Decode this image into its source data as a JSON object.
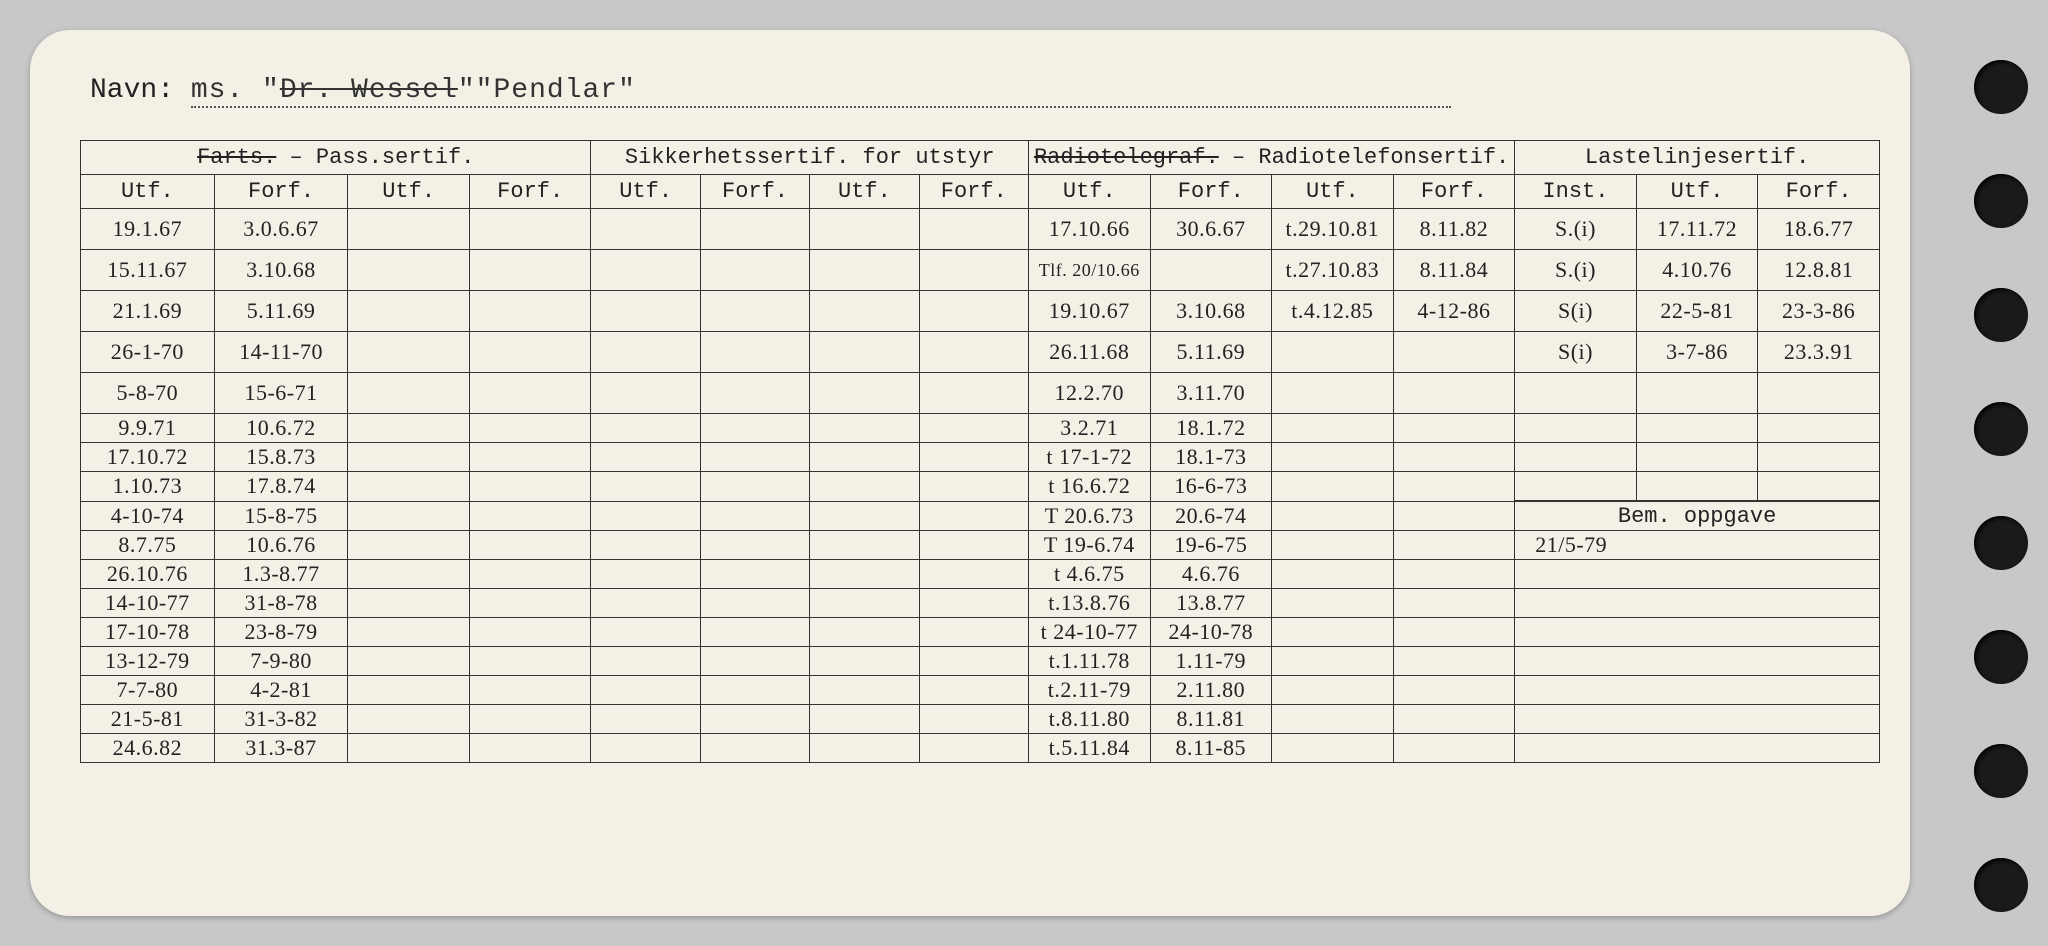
{
  "navn_label": "Navn:",
  "navn_typed_prefix": "ms.  \"",
  "navn_struck": "Dr. Wessel",
  "navn_typed_rest": "\"\"Pendlar\"",
  "headers": {
    "pass_group": "Farts. – Pass.sertif.",
    "pass_struck": "Farts.",
    "pass_rest": " – Pass.sertif.",
    "sik_group": "Sikkerhetssertif. for utstyr",
    "rad_group_struck": "Radiotelegraf.",
    "rad_group_rest": " – Radiotelefonsertif.",
    "last_group": "Lastelinjesertif.",
    "utf": "Utf.",
    "forf": "Forf.",
    "inst": "Inst.",
    "bem": "Bem. oppgave"
  },
  "pass": [
    [
      "19.1.67",
      "3.0.6.67"
    ],
    [
      "15.11.67",
      "3.10.68"
    ],
    [
      "21.1.69",
      "5.11.69"
    ],
    [
      "26-1-70",
      "14-11-70"
    ],
    [
      "5-8-70",
      "15-6-71"
    ],
    [
      "9.9.71",
      "10.6.72"
    ],
    [
      "17.10.72",
      "15.8.73"
    ],
    [
      "1.10.73",
      "17.8.74"
    ],
    [
      "4-10-74",
      "15-8-75"
    ],
    [
      "8.7.75",
      "10.6.76"
    ],
    [
      "26.10.76",
      "1.3-8.77"
    ],
    [
      "14-10-77",
      "31-8-78"
    ],
    [
      "17-10-78",
      "23-8-79"
    ],
    [
      "13-12-79",
      "7-9-80"
    ],
    [
      "7-7-80",
      "4-2-81"
    ],
    [
      "21-5-81",
      "31-3-82"
    ],
    [
      "24.6.82",
      "31.3-87"
    ]
  ],
  "radio_a": [
    [
      "17.10.66",
      "30.6.67"
    ],
    [
      "Tlf. 20/10.66",
      ""
    ],
    [
      "19.10.67",
      "3.10.68"
    ],
    [
      "26.11.68",
      "5.11.69"
    ],
    [
      "12.2.70",
      "3.11.70"
    ],
    [
      "3.2.71",
      "18.1.72"
    ],
    [
      "t 17-1-72",
      "18.1-73"
    ],
    [
      "t 16.6.72",
      "16-6-73"
    ],
    [
      "T 20.6.73",
      "20.6-74"
    ],
    [
      "T 19-6.74",
      "19-6-75"
    ],
    [
      "t 4.6.75",
      "4.6.76"
    ],
    [
      "t.13.8.76",
      "13.8.77"
    ],
    [
      "t 24-10-77",
      "24-10-78"
    ],
    [
      "t.1.11.78",
      "1.11-79"
    ],
    [
      "t.2.11-79",
      "2.11.80"
    ],
    [
      "t.8.11.80",
      "8.11.81"
    ],
    [
      "t.5.11.84",
      "8.11-85"
    ]
  ],
  "radio_b": [
    [
      "t.29.10.81",
      "8.11.82"
    ],
    [
      "t.27.10.83",
      "8.11.84"
    ],
    [
      "t.4.12.85",
      "4-12-86"
    ]
  ],
  "laste": [
    [
      "S.(i)",
      "17.11.72",
      "18.6.77"
    ],
    [
      "S.(i)",
      "4.10.76",
      "12.8.81"
    ],
    [
      "S(i)",
      "22-5-81",
      "23-3-86"
    ],
    [
      "S(i)",
      "3-7-86",
      "23.3.91"
    ]
  ],
  "bem_entries": [
    "21/5-79"
  ]
}
